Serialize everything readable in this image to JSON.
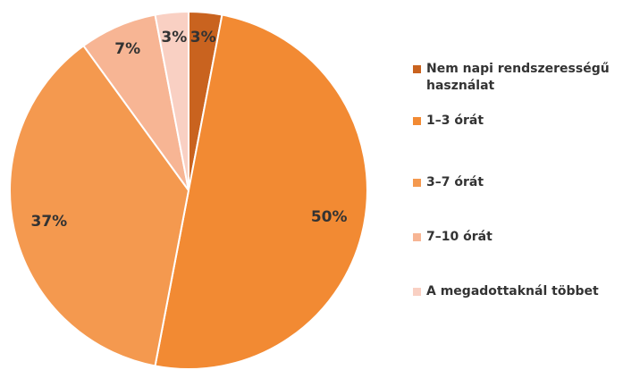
{
  "chart_data": {
    "type": "pie",
    "categories": [
      "Nem napi rendszerességű használat",
      "1–3 órát",
      "3–7 órát",
      "7–10 órát",
      "A megadottaknál többet"
    ],
    "values": [
      3,
      50,
      37,
      7,
      3
    ],
    "value_labels": [
      "3%",
      "50%",
      "37%",
      "7%",
      "3%"
    ],
    "colors": [
      "#c9631f",
      "#f28a33",
      "#f4994f",
      "#f7b594",
      "#f9d0c3"
    ],
    "legend": "right"
  }
}
